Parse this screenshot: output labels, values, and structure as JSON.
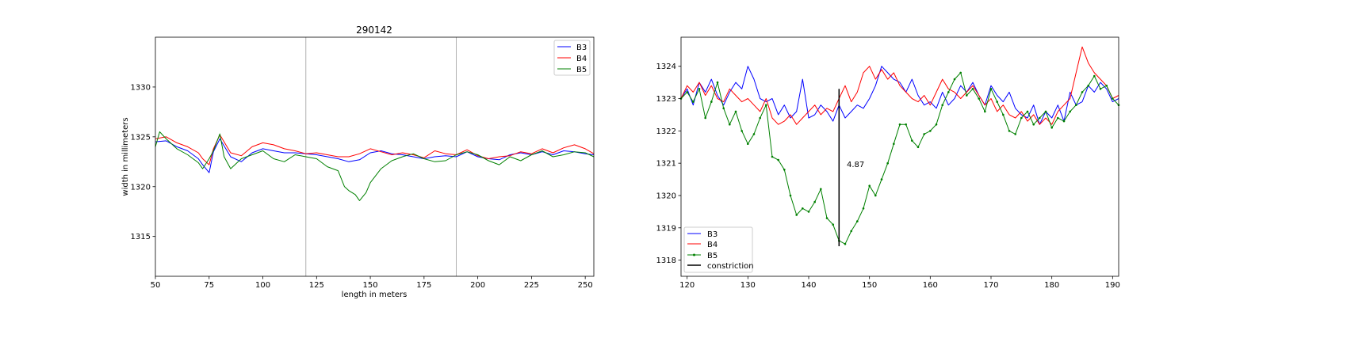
{
  "chart_data": [
    {
      "type": "line",
      "title": "290142",
      "xlabel": "length in meters",
      "ylabel": "width in millimeters",
      "xlim": [
        50,
        254
      ],
      "ylim": [
        1311,
        1335
      ],
      "xticks": [
        50,
        75,
        100,
        125,
        150,
        175,
        200,
        225,
        250
      ],
      "yticks": [
        1315,
        1320,
        1325,
        1330
      ],
      "vlines": [
        120,
        190
      ],
      "grid": false,
      "legend_position": "top-right",
      "series": [
        {
          "name": "B3",
          "color": "#0000ff",
          "x": [
            50,
            55,
            60,
            65,
            70,
            72,
            75,
            77,
            80,
            85,
            90,
            95,
            100,
            105,
            110,
            115,
            120,
            125,
            130,
            135,
            140,
            145,
            150,
            155,
            160,
            165,
            170,
            175,
            180,
            185,
            190,
            195,
            200,
            205,
            210,
            215,
            220,
            225,
            230,
            235,
            240,
            245,
            250,
            254
          ],
          "y": [
            1324.5,
            1324.6,
            1324.0,
            1323.6,
            1322.8,
            1322.2,
            1321.4,
            1323.5,
            1324.8,
            1323.0,
            1322.5,
            1323.4,
            1323.8,
            1323.6,
            1323.4,
            1323.4,
            1323.3,
            1323.2,
            1323.0,
            1322.8,
            1322.5,
            1322.7,
            1323.4,
            1323.6,
            1323.3,
            1323.2,
            1323.0,
            1322.8,
            1323.0,
            1323.1,
            1323.0,
            1323.5,
            1323.0,
            1322.8,
            1322.7,
            1323.2,
            1323.4,
            1323.2,
            1323.5,
            1323.2,
            1323.6,
            1323.5,
            1323.3,
            1323.2
          ]
        },
        {
          "name": "B4",
          "color": "#ff0000",
          "x": [
            50,
            55,
            60,
            65,
            70,
            72,
            75,
            77,
            80,
            85,
            90,
            95,
            100,
            105,
            110,
            115,
            120,
            125,
            130,
            135,
            140,
            145,
            150,
            155,
            160,
            165,
            170,
            175,
            180,
            185,
            190,
            195,
            200,
            205,
            210,
            215,
            220,
            225,
            230,
            235,
            240,
            245,
            250,
            254
          ],
          "y": [
            1324.8,
            1325.0,
            1324.4,
            1324.0,
            1323.4,
            1322.8,
            1322.2,
            1323.8,
            1325.2,
            1323.4,
            1323.1,
            1324.0,
            1324.4,
            1324.2,
            1323.8,
            1323.6,
            1323.3,
            1323.4,
            1323.2,
            1323.0,
            1323.0,
            1323.3,
            1323.8,
            1323.5,
            1323.2,
            1323.4,
            1323.2,
            1322.9,
            1323.6,
            1323.3,
            1323.2,
            1323.7,
            1323.1,
            1322.8,
            1323.0,
            1323.1,
            1323.5,
            1323.3,
            1323.8,
            1323.4,
            1323.9,
            1324.2,
            1323.8,
            1323.3
          ]
        },
        {
          "name": "B5",
          "color": "#008000",
          "x": [
            50,
            52,
            55,
            60,
            65,
            70,
            72,
            75,
            77,
            80,
            82,
            85,
            90,
            95,
            100,
            105,
            110,
            115,
            120,
            125,
            130,
            135,
            138,
            140,
            143,
            145,
            148,
            150,
            155,
            160,
            165,
            170,
            175,
            180,
            185,
            190,
            195,
            200,
            205,
            210,
            215,
            220,
            225,
            230,
            235,
            240,
            245,
            250,
            254
          ],
          "y": [
            1324.0,
            1325.5,
            1324.8,
            1323.8,
            1323.2,
            1322.4,
            1321.8,
            1322.8,
            1323.6,
            1325.3,
            1323.0,
            1321.8,
            1322.8,
            1323.2,
            1323.6,
            1322.8,
            1322.5,
            1323.2,
            1323.0,
            1322.8,
            1322.0,
            1321.6,
            1320.0,
            1319.6,
            1319.2,
            1318.6,
            1319.4,
            1320.4,
            1321.8,
            1322.6,
            1323.0,
            1323.3,
            1322.8,
            1322.5,
            1322.6,
            1323.2,
            1323.5,
            1323.2,
            1322.6,
            1322.2,
            1323.0,
            1322.6,
            1323.2,
            1323.6,
            1323.0,
            1323.2,
            1323.5,
            1323.4,
            1323.0
          ]
        }
      ]
    },
    {
      "type": "line",
      "xlim": [
        119,
        191
      ],
      "ylim": [
        1317.5,
        1324.9
      ],
      "xticks": [
        120,
        130,
        140,
        150,
        160,
        170,
        180,
        190
      ],
      "yticks": [
        1318,
        1319,
        1320,
        1321,
        1322,
        1323,
        1324
      ],
      "grid": false,
      "legend_position": "bottom-left",
      "annotation": {
        "text": "4.87",
        "x": 145.5,
        "y": 1320.8
      },
      "series": [
        {
          "name": "B3",
          "color": "#0000ff",
          "markers": false,
          "x": [
            119,
            120,
            121,
            122,
            123,
            124,
            125,
            126,
            127,
            128,
            129,
            130,
            131,
            132,
            133,
            134,
            135,
            136,
            137,
            138,
            139,
            140,
            141,
            142,
            143,
            144,
            145,
            146,
            147,
            148,
            149,
            150,
            151,
            152,
            153,
            154,
            155,
            156,
            157,
            158,
            159,
            160,
            161,
            162,
            163,
            164,
            165,
            166,
            167,
            168,
            169,
            170,
            171,
            172,
            173,
            174,
            175,
            176,
            177,
            178,
            179,
            180,
            181,
            182,
            183,
            184,
            185,
            186,
            187,
            188,
            189,
            190,
            191
          ],
          "y": [
            1323.0,
            1323.3,
            1322.8,
            1323.5,
            1323.2,
            1323.6,
            1323.1,
            1322.8,
            1323.2,
            1323.5,
            1323.3,
            1324.0,
            1323.6,
            1323.0,
            1322.9,
            1323.0,
            1322.5,
            1322.8,
            1322.4,
            1322.6,
            1323.6,
            1322.4,
            1322.5,
            1322.8,
            1322.6,
            1322.3,
            1322.8,
            1322.4,
            1322.6,
            1322.8,
            1322.7,
            1323.0,
            1323.4,
            1324.0,
            1323.8,
            1323.6,
            1323.5,
            1323.2,
            1323.6,
            1323.1,
            1322.8,
            1322.9,
            1322.7,
            1323.2,
            1322.8,
            1323.0,
            1323.4,
            1323.2,
            1323.5,
            1323.1,
            1322.8,
            1323.4,
            1323.1,
            1322.9,
            1323.2,
            1322.7,
            1322.5,
            1322.4,
            1322.8,
            1322.2,
            1322.6,
            1322.4,
            1322.8,
            1322.3,
            1323.2,
            1322.8,
            1322.9,
            1323.4,
            1323.2,
            1323.5,
            1323.3,
            1322.9,
            1323.0
          ]
        },
        {
          "name": "B4",
          "color": "#ff0000",
          "markers": false,
          "x": [
            119,
            120,
            121,
            122,
            123,
            124,
            125,
            126,
            127,
            128,
            129,
            130,
            131,
            132,
            133,
            134,
            135,
            136,
            137,
            138,
            139,
            140,
            141,
            142,
            143,
            144,
            145,
            146,
            147,
            148,
            149,
            150,
            151,
            152,
            153,
            154,
            155,
            156,
            157,
            158,
            159,
            160,
            161,
            162,
            163,
            164,
            165,
            166,
            167,
            168,
            169,
            170,
            171,
            172,
            173,
            174,
            175,
            176,
            177,
            178,
            179,
            180,
            181,
            182,
            183,
            184,
            185,
            186,
            187,
            188,
            189,
            190,
            191
          ],
          "y": [
            1323.0,
            1323.4,
            1323.2,
            1323.5,
            1323.1,
            1323.4,
            1323.0,
            1322.9,
            1323.3,
            1323.1,
            1322.9,
            1323.0,
            1322.8,
            1322.6,
            1323.0,
            1322.4,
            1322.2,
            1322.3,
            1322.5,
            1322.2,
            1322.4,
            1322.6,
            1322.8,
            1322.5,
            1322.7,
            1322.6,
            1323.0,
            1323.4,
            1322.9,
            1323.2,
            1323.8,
            1324.0,
            1323.6,
            1323.9,
            1323.6,
            1323.8,
            1323.4,
            1323.2,
            1323.0,
            1322.9,
            1323.1,
            1322.8,
            1323.2,
            1323.6,
            1323.3,
            1323.2,
            1323.0,
            1323.2,
            1323.4,
            1323.1,
            1322.8,
            1323.0,
            1322.6,
            1322.8,
            1322.5,
            1322.4,
            1322.6,
            1322.3,
            1322.5,
            1322.2,
            1322.4,
            1322.2,
            1322.6,
            1322.8,
            1323.0,
            1323.8,
            1324.6,
            1324.1,
            1323.8,
            1323.6,
            1323.4,
            1323.0,
            1323.1
          ]
        },
        {
          "name": "B5",
          "color": "#008000",
          "markers": true,
          "x": [
            119,
            120,
            121,
            122,
            123,
            124,
            125,
            126,
            127,
            128,
            129,
            130,
            131,
            132,
            133,
            134,
            135,
            136,
            137,
            138,
            139,
            140,
            141,
            142,
            143,
            144,
            145,
            146,
            147,
            148,
            149,
            150,
            151,
            152,
            153,
            154,
            155,
            156,
            157,
            158,
            159,
            160,
            161,
            162,
            163,
            164,
            165,
            166,
            167,
            168,
            169,
            170,
            171,
            172,
            173,
            174,
            175,
            176,
            177,
            178,
            179,
            180,
            181,
            182,
            183,
            184,
            185,
            186,
            187,
            188,
            189,
            190,
            191
          ],
          "y": [
            1323.0,
            1323.2,
            1322.9,
            1323.3,
            1322.4,
            1322.9,
            1323.5,
            1322.7,
            1322.2,
            1322.6,
            1322.0,
            1321.6,
            1321.9,
            1322.4,
            1322.8,
            1321.2,
            1321.1,
            1320.8,
            1320.0,
            1319.4,
            1319.6,
            1319.5,
            1319.8,
            1320.2,
            1319.3,
            1319.1,
            1318.6,
            1318.5,
            1318.9,
            1319.2,
            1319.6,
            1320.3,
            1320.0,
            1320.5,
            1321.0,
            1321.6,
            1322.2,
            1322.2,
            1321.7,
            1321.5,
            1321.9,
            1322.0,
            1322.2,
            1322.8,
            1323.2,
            1323.6,
            1323.8,
            1323.1,
            1323.3,
            1323.0,
            1322.6,
            1323.3,
            1322.9,
            1322.5,
            1322.0,
            1321.9,
            1322.4,
            1322.6,
            1322.2,
            1322.4,
            1322.6,
            1322.1,
            1322.4,
            1322.3,
            1322.6,
            1322.8,
            1323.2,
            1323.4,
            1323.7,
            1323.3,
            1323.4,
            1323.0,
            1322.8
          ]
        },
        {
          "name": "constriction",
          "color": "#000000",
          "markers": false,
          "x": [
            145,
            145
          ],
          "y": [
            1318.43,
            1323.3
          ]
        }
      ]
    }
  ]
}
